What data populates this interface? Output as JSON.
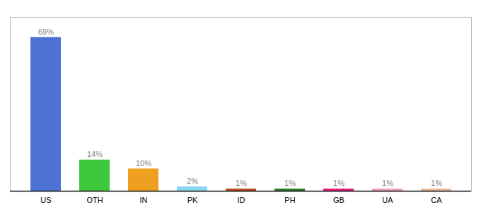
{
  "chart_data": {
    "type": "bar",
    "categories": [
      "US",
      "OTH",
      "IN",
      "PK",
      "ID",
      "PH",
      "GB",
      "UA",
      "CA"
    ],
    "values": [
      69,
      14,
      10,
      2,
      1,
      1,
      1,
      1,
      1
    ],
    "value_labels": [
      "69%",
      "14%",
      "10%",
      "2%",
      "1%",
      "1%",
      "1%",
      "1%",
      "1%"
    ],
    "colors": [
      "#4c72d4",
      "#3ec83e",
      "#f0a020",
      "#88d8f0",
      "#b84c18",
      "#2a7a2a",
      "#e8187c",
      "#f0a0b8",
      "#e8b898"
    ],
    "ylim": [
      0,
      78
    ],
    "data_labels": true,
    "tick_labels": "x",
    "grid": false
  }
}
